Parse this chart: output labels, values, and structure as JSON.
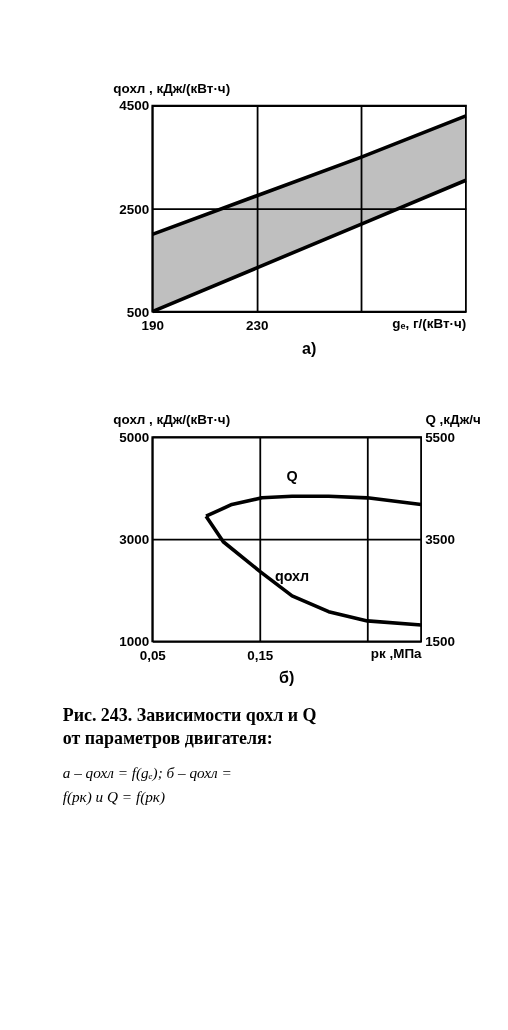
{
  "chart_data": [
    {
      "type": "line",
      "ylabel": "qохл , кДж/(кВт·ч)",
      "xlabel": "gₑ, г/(кВт·ч)",
      "x": [
        190,
        230,
        270,
        310
      ],
      "series": [
        {
          "color": "#000000",
          "values": [
            2000,
            2750,
            3500,
            4300
          ],
          "lower": [
            500,
            1350,
            2200,
            3050
          ],
          "upper": [
            2000,
            2750,
            3500,
            4300
          ]
        },
        {
          "color": "#000000",
          "values": [
            500,
            1350,
            2200,
            3050
          ]
        }
      ],
      "xlim": [
        190,
        310
      ],
      "xticks": [
        190,
        230,
        {
          "value": 270,
          "label": null
        }
      ],
      "ylim": [
        500,
        4500
      ],
      "yticks": [
        500,
        2500,
        4500
      ],
      "grid": true,
      "legend": false,
      "annotations": [
        "а)"
      ]
    },
    {
      "type": "line",
      "ylabel": "qохл , кДж/(кВт·ч)",
      "y2label": "Q ,кДж/ч",
      "xlabel": "pк ,МПа",
      "series": [
        {
          "name": "Q",
          "color": "#000000",
          "axis": "y2",
          "x": [
            0.1,
            0.124,
            0.152,
            0.18,
            0.214,
            0.25,
            0.3
          ],
          "values": [
            3950,
            4180,
            4310,
            4340,
            4340,
            4310,
            4180
          ]
        },
        {
          "name": "qохл",
          "color": "#000000",
          "x": [
            0.1,
            0.116,
            0.15,
            0.18,
            0.214,
            0.25,
            0.3
          ],
          "values": [
            3450,
            2950,
            2370,
            1890,
            1580,
            1400,
            1320
          ]
        }
      ],
      "xlim": [
        0.05,
        0.3
      ],
      "xticks": [
        {
          "value": 0.05,
          "label": "0,05"
        },
        {
          "value": 0.15,
          "label": "0,15"
        },
        {
          "value": 0.25,
          "label": null
        }
      ],
      "ylim": [
        1000,
        5000
      ],
      "yticks": [
        1000,
        3000,
        5000
      ],
      "y2lim": [
        1500,
        5500
      ],
      "y2ticks": [
        1500,
        3500,
        5500
      ],
      "grid": true,
      "legend": false,
      "annotations": [
        "б)",
        "Рис. 243. Зависимости qохл и Q от параметров двигателя:",
        "а – qохл = f(gₑ);     б – qохл = f(pк) и Q = f(pк)"
      ]
    }
  ]
}
